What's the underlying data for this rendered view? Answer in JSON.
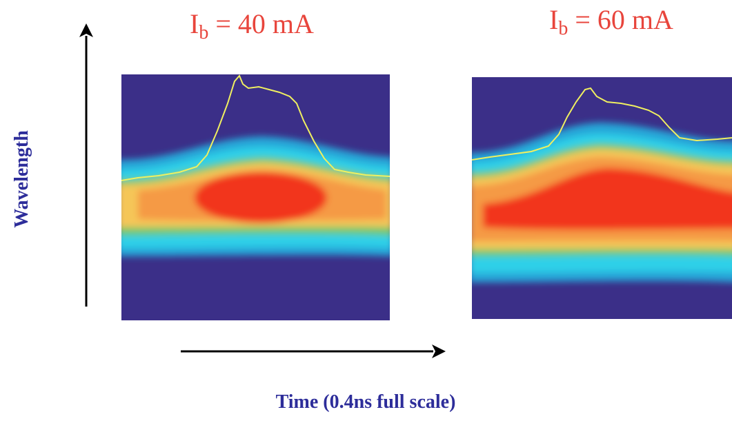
{
  "panels": [
    {
      "title": {
        "symbol": "I",
        "subscript": "b",
        "text": " = 40 mA"
      }
    },
    {
      "title": {
        "symbol": "I",
        "subscript": "b",
        "text": " = 60 mA"
      }
    }
  ],
  "axes": {
    "vertical_label": "Wavelength",
    "horizontal_label": "Time (0.4ns full scale)"
  }
}
